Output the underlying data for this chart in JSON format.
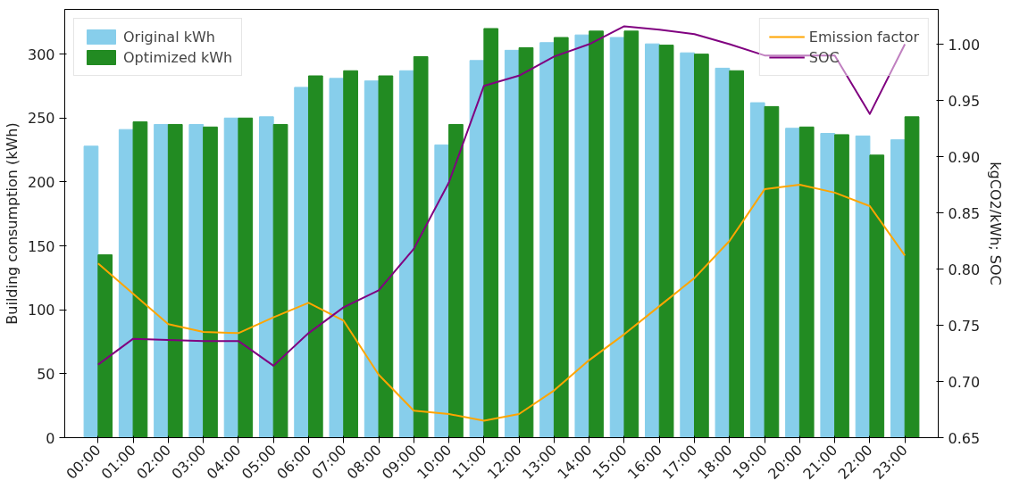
{
  "chart_data": {
    "type": "bar",
    "ylabel": "Building consumption (kWh)",
    "y2label": "kgCO2/kWh; SOC",
    "categories": [
      "00:00",
      "01:00",
      "02:00",
      "03:00",
      "04:00",
      "05:00",
      "06:00",
      "07:00",
      "08:00",
      "09:00",
      "10:00",
      "11:00",
      "12:00",
      "13:00",
      "14:00",
      "15:00",
      "16:00",
      "17:00",
      "18:00",
      "19:00",
      "20:00",
      "21:00",
      "22:00",
      "23:00"
    ],
    "series": [
      {
        "name": "Original kWh",
        "color": "#87ceeb",
        "values": [
          228,
          241,
          245,
          245,
          250,
          251,
          274,
          281,
          279,
          287,
          229,
          295,
          303,
          309,
          315,
          313,
          308,
          301,
          289,
          262,
          242,
          238,
          236,
          233
        ]
      },
      {
        "name": "Optimized kWh",
        "color": "#228b22",
        "values": [
          143,
          247,
          245,
          243,
          250,
          245,
          283,
          287,
          283,
          298,
          245,
          320,
          305,
          313,
          318,
          318,
          307,
          300,
          287,
          259,
          243,
          237,
          221,
          251
        ]
      },
      {
        "name": "Emission factor",
        "type": "line",
        "axis": "y2",
        "color": "#ffa500",
        "values": [
          0.805,
          0.778,
          0.751,
          0.744,
          0.743,
          0.757,
          0.77,
          0.754,
          0.706,
          0.674,
          0.671,
          0.665,
          0.671,
          0.692,
          0.719,
          0.742,
          0.767,
          0.792,
          0.825,
          0.871,
          0.875,
          0.868,
          0.856,
          0.812
        ]
      },
      {
        "name": "SOC",
        "type": "line",
        "axis": "y2",
        "color": "#800080",
        "values": [
          0.715,
          0.738,
          0.737,
          0.736,
          0.736,
          0.714,
          0.743,
          0.766,
          0.781,
          0.818,
          0.877,
          0.963,
          0.972,
          0.989,
          1.0,
          1.016,
          1.013,
          1.009,
          1.0,
          0.99,
          0.99,
          0.99,
          0.938,
          1.0
        ]
      }
    ],
    "ylim": [
      0,
      335
    ],
    "yticks": [
      0,
      50,
      100,
      150,
      200,
      250,
      300
    ],
    "y2lim": [
      0.65,
      1.031
    ],
    "y2ticks": [
      {
        "value": 0.65,
        "label": "0.65"
      },
      {
        "value": 0.7,
        "label": "0.70"
      },
      {
        "value": 0.75,
        "label": "0.75"
      },
      {
        "value": 0.8,
        "label": "0.80"
      },
      {
        "value": 0.85,
        "label": "0.85"
      },
      {
        "value": 0.9,
        "label": "0.90"
      },
      {
        "value": 0.95,
        "label": "0.95"
      },
      {
        "value": 1.0,
        "label": "1.00"
      }
    ],
    "grid": false,
    "legend": "top left"
  }
}
